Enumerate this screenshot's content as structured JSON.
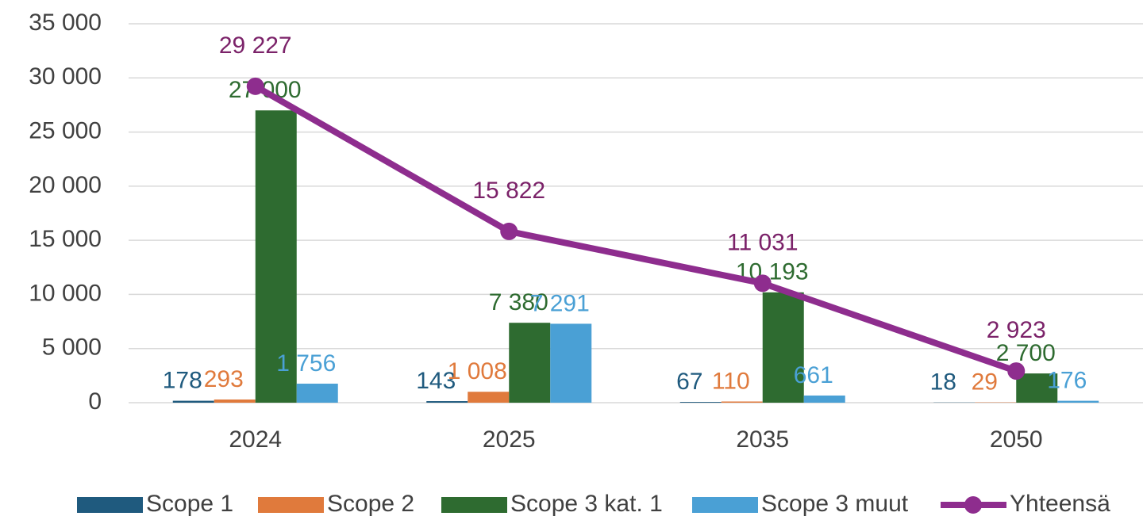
{
  "chart_data": {
    "type": "bar",
    "categories": [
      "2024",
      "2025",
      "2035",
      "2050"
    ],
    "series": [
      {
        "name": "Scope 1",
        "color": "#1f5a7e",
        "values": [
          178,
          143,
          67,
          18
        ],
        "value_labels": [
          "178",
          "143",
          "67",
          "18"
        ]
      },
      {
        "name": "Scope 2",
        "color": "#e07a3c",
        "values": [
          293,
          1008,
          110,
          29
        ],
        "value_labels": [
          "293",
          "1 008",
          "110",
          "29"
        ]
      },
      {
        "name": "Scope 3 kat. 1",
        "color": "#2e6b30",
        "values": [
          27000,
          7380,
          10193,
          2700
        ],
        "value_labels": [
          "27 000",
          "7 380",
          "10 193",
          "2 700"
        ]
      },
      {
        "name": "Scope 3 muut",
        "color": "#4aa0d5",
        "values": [
          1756,
          7291,
          661,
          176
        ],
        "value_labels": [
          "1 756",
          "7 291",
          "661",
          "176"
        ]
      },
      {
        "name": "Yhteensä",
        "color": "#8e2d8e",
        "type": "line",
        "values": [
          29227,
          15822,
          11031,
          2923
        ],
        "value_labels": [
          "29 227",
          "15 822",
          "11 031",
          "2 923"
        ]
      }
    ],
    "ylim": [
      0,
      35000
    ],
    "yticks": [
      0,
      {
        "value": 5000,
        "label": "5 000"
      },
      {
        "value": 10000,
        "label": "10 000"
      },
      {
        "value": 15000,
        "label": "15 000"
      },
      {
        "value": 20000,
        "label": "20 000"
      },
      {
        "value": 25000,
        "label": "25 000"
      },
      {
        "value": 30000,
        "label": "30 000"
      },
      {
        "value": 35000,
        "label": "35 000"
      }
    ],
    "grid": true,
    "legend": "bottom"
  }
}
